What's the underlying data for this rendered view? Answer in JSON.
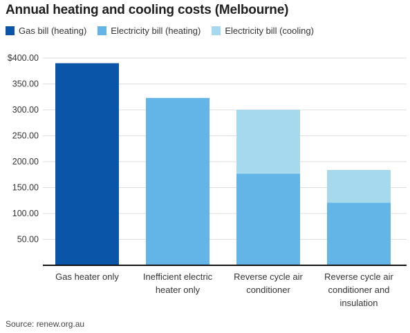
{
  "title": "Annual heating and cooling costs (Melbourne)",
  "source": "Source: renew.org.au",
  "colors": {
    "gas_heating": "#0a55a8",
    "elec_heating": "#63b5e8",
    "elec_cooling": "#a7d9ee",
    "axis": "#111111",
    "grid": "#dddddd",
    "tick_text": "#333333"
  },
  "chart_data": {
    "type": "bar",
    "stacked": true,
    "title": "Annual heating and cooling costs (Melbourne)",
    "xlabel": "",
    "ylabel": "",
    "ylim": [
      0,
      400
    ],
    "grid": true,
    "legend_position": "top-left",
    "y_ticks": [
      {
        "value": 50,
        "label": "50.00"
      },
      {
        "value": 100,
        "label": "100.00"
      },
      {
        "value": 150,
        "label": "150.00"
      },
      {
        "value": 200,
        "label": "200.00"
      },
      {
        "value": 250,
        "label": "250.00"
      },
      {
        "value": 300,
        "label": "300.00"
      },
      {
        "value": 350,
        "label": "350.00"
      },
      {
        "value": 400,
        "label": "$400.00"
      }
    ],
    "categories": [
      [
        "Gas heater only"
      ],
      [
        "Inefficient electric",
        "heater only"
      ],
      [
        "Reverse cycle air",
        "conditioner"
      ],
      [
        "Reverse cycle air",
        "conditioner and",
        "insulation"
      ]
    ],
    "series": [
      {
        "name": "Gas bill (heating)",
        "color_key": "gas_heating",
        "values": [
          390,
          0,
          0,
          0
        ]
      },
      {
        "name": "Electricity bill (heating)",
        "color_key": "elec_heating",
        "values": [
          0,
          323,
          177,
          121
        ]
      },
      {
        "name": "Electricity bill (cooling)",
        "color_key": "elec_cooling",
        "values": [
          0,
          0,
          123,
          63
        ]
      }
    ]
  }
}
